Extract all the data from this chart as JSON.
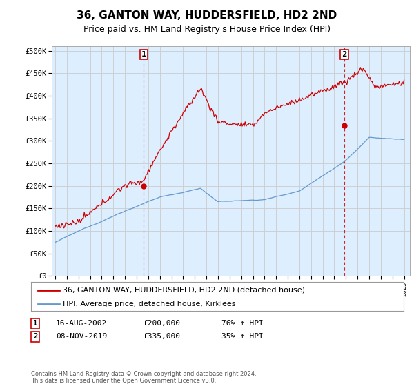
{
  "title": "36, GANTON WAY, HUDDERSFIELD, HD2 2ND",
  "subtitle": "Price paid vs. HM Land Registry's House Price Index (HPI)",
  "title_fontsize": 11,
  "subtitle_fontsize": 9,
  "ylabel_ticks": [
    "£0",
    "£50K",
    "£100K",
    "£150K",
    "£200K",
    "£250K",
    "£300K",
    "£350K",
    "£400K",
    "£450K",
    "£500K"
  ],
  "ytick_values": [
    0,
    50000,
    100000,
    150000,
    200000,
    250000,
    300000,
    350000,
    400000,
    450000,
    500000
  ],
  "ylim": [
    0,
    510000
  ],
  "xlim_start": 1994.7,
  "xlim_end": 2025.5,
  "sale1_x": 2002.62,
  "sale1_y": 200000,
  "sale2_x": 2019.85,
  "sale2_y": 335000,
  "sale_color": "#cc0000",
  "hpi_color": "#6699cc",
  "line_color": "#cc0000",
  "plot_bg_color": "#ddeeff",
  "legend_label1": "36, GANTON WAY, HUDDERSFIELD, HD2 2ND (detached house)",
  "legend_label2": "HPI: Average price, detached house, Kirklees",
  "table_row1_num": "1",
  "table_row1_date": "16-AUG-2002",
  "table_row1_price": "£200,000",
  "table_row1_hpi": "76% ↑ HPI",
  "table_row2_num": "2",
  "table_row2_date": "08-NOV-2019",
  "table_row2_price": "£335,000",
  "table_row2_hpi": "35% ↑ HPI",
  "footer": "Contains HM Land Registry data © Crown copyright and database right 2024.\nThis data is licensed under the Open Government Licence v3.0.",
  "background_color": "#ffffff",
  "grid_color": "#cccccc"
}
